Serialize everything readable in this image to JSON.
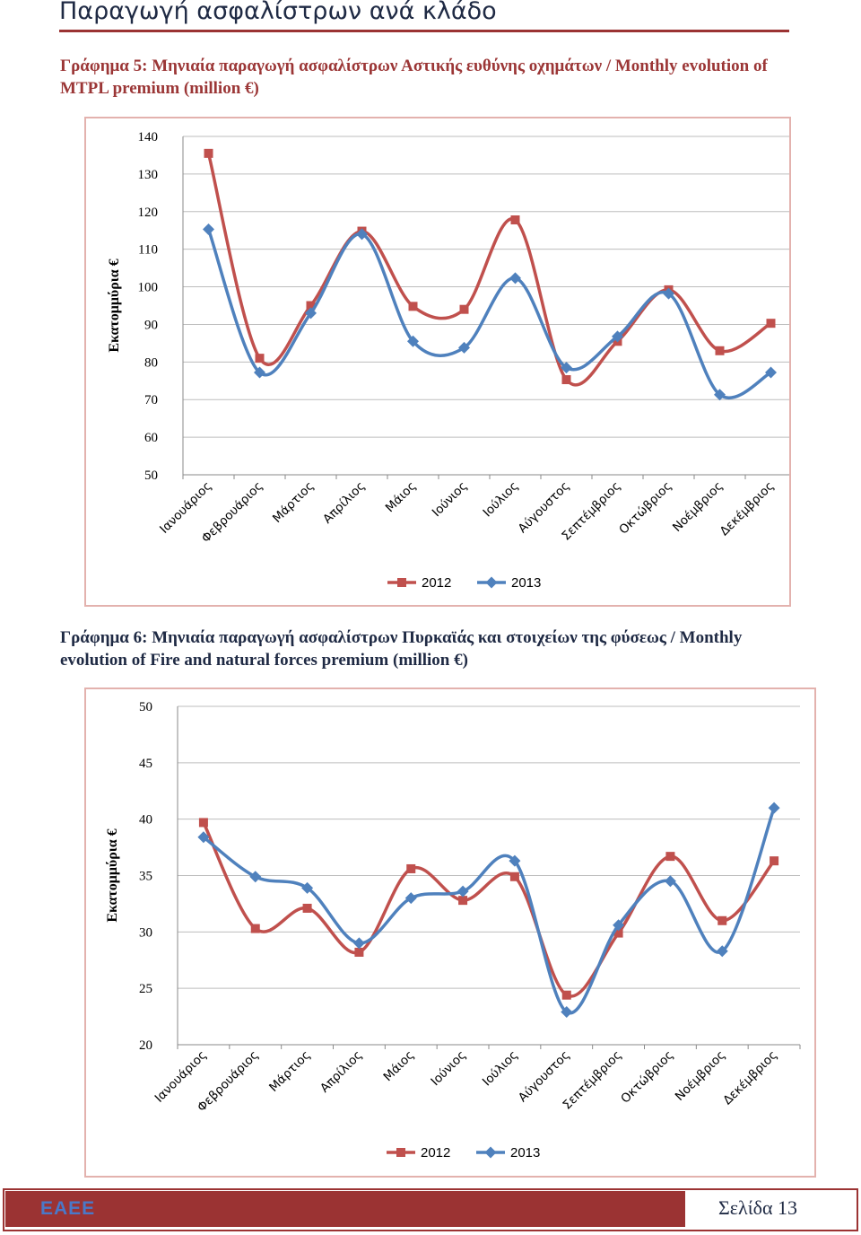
{
  "page": {
    "header_title": "Παραγωγή ασφαλίστρων ανά κλάδο",
    "footer_brand": "ΕΑΕΕ",
    "footer_page": "Σελίδα 13"
  },
  "colors": {
    "series_2012": "#c0504d",
    "series_2013": "#4f81bd",
    "accent": "#9b3333"
  },
  "charts": [
    {
      "heading": "Γράφημα 5: Μηνιαία παραγωγή ασφαλίστρων Αστικής ευθύνης οχημάτων / Monthly evolution of MTPL premium (million €)"
    },
    {
      "heading": "Γράφημα 6: Μηνιαία παραγωγή ασφαλίστρων Πυρκαϊάς και στοιχείων της φύσεως / Monthly evolution of Fire and natural forces premium (million €)"
    }
  ],
  "chart_data": [
    {
      "type": "line",
      "title": "",
      "xlabel": "",
      "ylabel": "Εκατομμύρια €",
      "ylim": [
        50,
        140
      ],
      "yticks": [
        50,
        60,
        70,
        80,
        90,
        100,
        110,
        120,
        130,
        140
      ],
      "grid": true,
      "smooth": true,
      "legend": "bottom",
      "categories": [
        "Ιανουάριος",
        "Φεβρουάριος",
        "Μάρτιος",
        "Απρίλιος",
        "Μάιος",
        "Ιούνιος",
        "Ιούλιος",
        "Αύγουστος",
        "Σεπτέμβριος",
        "Οκτώβριος",
        "Νοέμβριος",
        "Δεκέμβριος"
      ],
      "series": [
        {
          "name": "2012",
          "color": "#c0504d",
          "marker": "square",
          "values": [
            135.5,
            81,
            95,
            114.8,
            94.8,
            94,
            117.8,
            75.3,
            85.5,
            99.2,
            83,
            90.3
          ]
        },
        {
          "name": "2013",
          "color": "#4f81bd",
          "marker": "diamond",
          "values": [
            115.3,
            77.2,
            93,
            114,
            85.5,
            83.8,
            102.3,
            78.5,
            86.8,
            98.2,
            71.3,
            77.2
          ]
        }
      ]
    },
    {
      "type": "line",
      "title": "",
      "xlabel": "",
      "ylabel": "Εκατομμύρια €",
      "ylim": [
        20,
        50
      ],
      "yticks": [
        20,
        25,
        30,
        35,
        40,
        45,
        50
      ],
      "grid": true,
      "smooth": true,
      "legend": "bottom",
      "categories": [
        "Ιανουάριος",
        "Φεβρουάριος",
        "Μάρτιος",
        "Απρίλιος",
        "Μάιος",
        "Ιούνιος",
        "Ιούλιος",
        "Αύγουστος",
        "Σεπτέμβριος",
        "Οκτώβριος",
        "Νοέμβριος",
        "Δεκέμβριος"
      ],
      "series": [
        {
          "name": "2012",
          "color": "#c0504d",
          "marker": "square",
          "values": [
            39.7,
            30.3,
            32.1,
            28.2,
            35.6,
            32.8,
            34.9,
            24.4,
            29.9,
            36.7,
            31,
            36.3
          ]
        },
        {
          "name": "2013",
          "color": "#4f81bd",
          "marker": "diamond",
          "values": [
            38.4,
            34.9,
            33.9,
            29,
            33,
            33.6,
            36.3,
            22.9,
            30.6,
            34.5,
            28.3,
            41
          ]
        }
      ]
    }
  ]
}
